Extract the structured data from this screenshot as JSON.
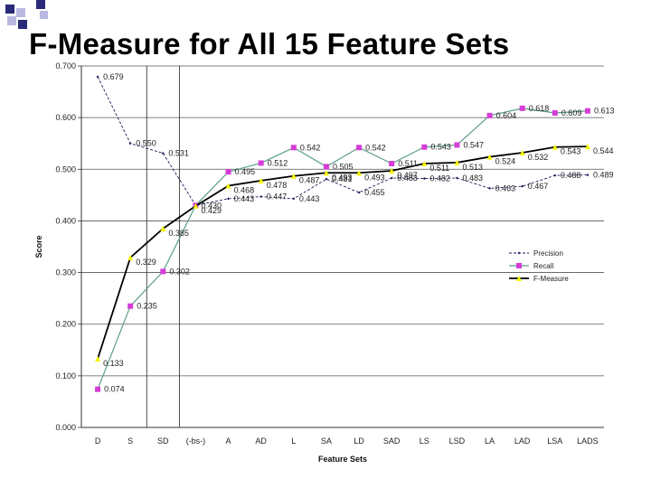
{
  "slide": {
    "title": "F-Measure for All 15 Feature Sets"
  },
  "colors": {
    "bullet_dark": "#2a2a7a",
    "bullet_light": "#b8b8e0",
    "precision": "#1a1a5a",
    "recall": "#d63cd6",
    "recall_line": "#5a9e8a",
    "fmeasure": "#f5f500",
    "fmeasure_line": "#000000"
  },
  "chart_data": {
    "type": "line",
    "xlabel": "Feature Sets",
    "ylabel": "Score",
    "ylim": [
      0,
      0.7
    ],
    "yticks": [
      "0.000",
      "0.100",
      "0.200",
      "0.300",
      "0.400",
      "0.500",
      "0.600",
      "0.700"
    ],
    "grid": true,
    "legend_position": "right",
    "categories": [
      "D",
      "S",
      "SD",
      "(-bs-)",
      "A",
      "AD",
      "L",
      "SA",
      "LD",
      "SAD",
      "LS",
      "LSD",
      "LA",
      "LAD",
      "LSA",
      "LADS"
    ],
    "series": [
      {
        "name": "Precision",
        "values": [
          0.679,
          0.55,
          0.531,
          0.43,
          0.443,
          0.447,
          0.443,
          0.481,
          0.455,
          0.483,
          0.482,
          0.483,
          0.463,
          0.467,
          0.488,
          0.489
        ],
        "labels": [
          "0.679",
          "0.550",
          "0.531",
          "0.430",
          "0.443",
          "0.447",
          "0.443",
          "0.481",
          "0.455",
          "0.483",
          "0.482",
          "0.483",
          "0.463",
          "0.467",
          "0.488",
          "0.489"
        ]
      },
      {
        "name": "Recall",
        "values": [
          0.074,
          0.235,
          0.302,
          0.43,
          0.495,
          0.512,
          0.542,
          0.505,
          0.542,
          0.511,
          0.543,
          0.547,
          0.604,
          0.618,
          0.609,
          0.613
        ],
        "labels": [
          "0.074",
          "0.235",
          "0.302",
          "",
          "0.495",
          "0.512",
          "0.542",
          "0.505",
          "0.542",
          "0.511",
          "0.543",
          "0.547",
          "0.604",
          "0.618",
          "0.609",
          "0.613"
        ]
      },
      {
        "name": "F-Measure",
        "values": [
          0.133,
          0.329,
          0.385,
          0.429,
          0.468,
          0.478,
          0.487,
          0.493,
          0.493,
          0.497,
          0.511,
          0.513,
          0.524,
          0.532,
          0.543,
          0.544
        ],
        "labels": [
          "0.133",
          "0.329",
          "0.385",
          "0.429",
          "0.468",
          "0.478",
          "0.487",
          "0.493",
          "0.493",
          "0.497",
          "0.511",
          "0.513",
          "0.524",
          "0.532",
          "0.543",
          "0.544"
        ]
      }
    ]
  }
}
